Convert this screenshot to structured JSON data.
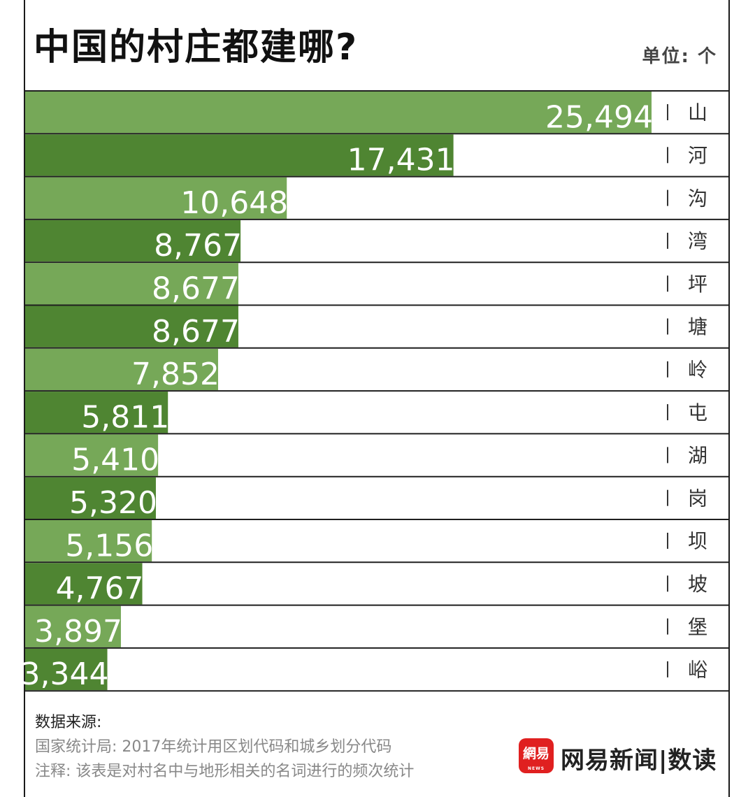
{
  "chart_data": {
    "type": "bar",
    "orientation": "horizontal",
    "title": "中国的村庄都建哪?",
    "unit_label": "单位: 个",
    "categories": [
      "山",
      "河",
      "沟",
      "湾",
      "坪",
      "塘",
      "岭",
      "屯",
      "湖",
      "岗",
      "坝",
      "坡",
      "堡",
      "峪"
    ],
    "values": [
      25494,
      17431,
      10648,
      8767,
      8677,
      8677,
      7852,
      5811,
      5410,
      5320,
      5156,
      4767,
      3897,
      3344
    ],
    "value_labels": [
      "25,494",
      "17,431",
      "10,648",
      "8,767",
      "8,677",
      "8,677",
      "7,852",
      "5,811",
      "5,410",
      "5,320",
      "5,156",
      "4,767",
      "3,897",
      "3,344"
    ],
    "xlim": [
      0,
      25494
    ],
    "colors": {
      "light": "#76a858",
      "dark": "#4f8532",
      "label": "#ffffff",
      "divider": "#1f1f1f"
    }
  },
  "footer": {
    "source_heading": "数据来源:",
    "source_line": "国家统计局: 2017年统计用区划代码和城乡划分代码",
    "note_line": "注释: 该表是对村名中与地形相关的名词进行的频次统计",
    "logo_text": "網易",
    "logo_sub": "NEWS",
    "brand": "网易新闻|数读"
  }
}
